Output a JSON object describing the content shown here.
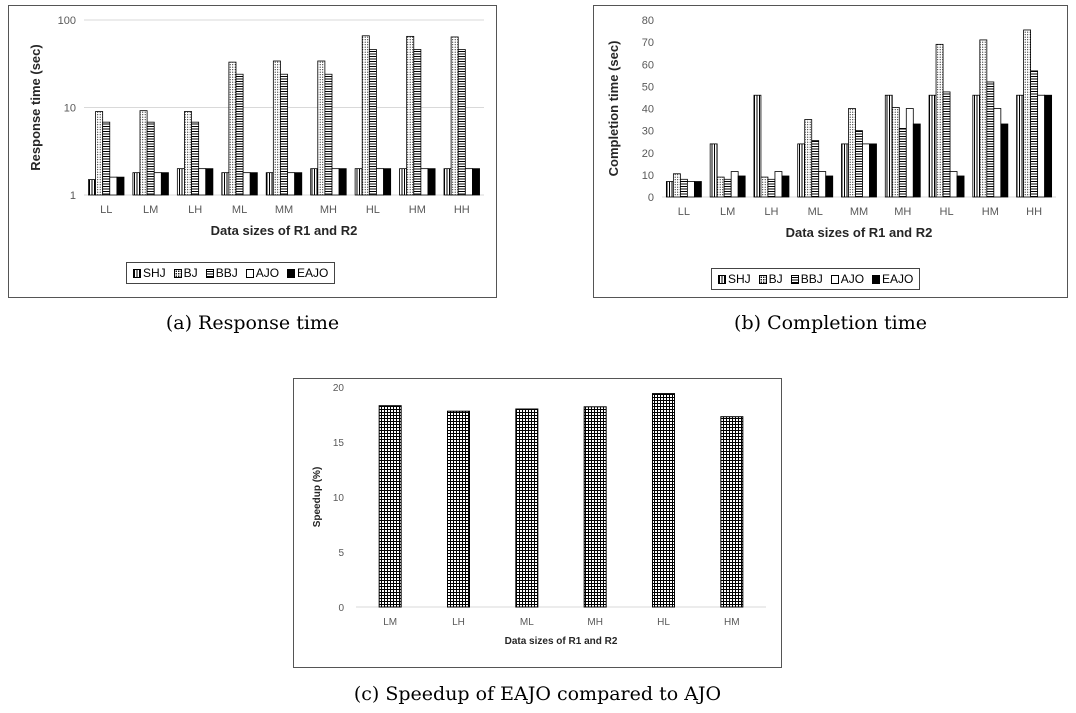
{
  "captions": {
    "a": "(a) Response time",
    "b": "(b) Completion time",
    "c": "(c) Speedup of EAJO compared to AJO"
  },
  "legend": [
    "SHJ",
    "BJ",
    "BBJ",
    "AJO",
    "EAJO"
  ],
  "chart_data": [
    {
      "id": "a",
      "type": "bar",
      "xlabel": "Data sizes of R1 and R2",
      "ylabel": "Response time (sec)",
      "yscale": "log",
      "ylim": [
        1,
        100
      ],
      "yticks": [
        1,
        10,
        100
      ],
      "grid": true,
      "legend_position": "bottom",
      "categories": [
        "LL",
        "LM",
        "LH",
        "ML",
        "MM",
        "MH",
        "HL",
        "HM",
        "HH"
      ],
      "series": [
        {
          "name": "SHJ",
          "values": [
            1.5,
            1.8,
            2.0,
            1.8,
            1.8,
            2.0,
            2.0,
            2.0,
            2.0
          ]
        },
        {
          "name": "BJ",
          "values": [
            9.0,
            9.2,
            9.0,
            33,
            34,
            34,
            66,
            65,
            64
          ]
        },
        {
          "name": "BBJ",
          "values": [
            6.8,
            6.8,
            6.8,
            24,
            24,
            24,
            46,
            46,
            46
          ]
        },
        {
          "name": "AJO",
          "values": [
            1.6,
            1.8,
            2.0,
            1.8,
            1.8,
            2.0,
            2.0,
            2.0,
            2.0
          ]
        },
        {
          "name": "EAJO",
          "values": [
            1.6,
            1.8,
            2.0,
            1.8,
            1.8,
            2.0,
            2.0,
            2.0,
            2.0
          ]
        }
      ]
    },
    {
      "id": "b",
      "type": "bar",
      "xlabel": "Data sizes of R1 and R2",
      "ylabel": "Completion time (sec)",
      "ylim": [
        0,
        80
      ],
      "yticks": [
        0,
        10,
        20,
        30,
        40,
        50,
        60,
        70,
        80
      ],
      "grid": false,
      "legend_position": "bottom",
      "categories": [
        "LL",
        "LM",
        "LH",
        "ML",
        "MM",
        "MH",
        "HL",
        "HM",
        "HH"
      ],
      "series": [
        {
          "name": "SHJ",
          "values": [
            7,
            24,
            46,
            24,
            24,
            46,
            46,
            46,
            46
          ]
        },
        {
          "name": "BJ",
          "values": [
            10.5,
            9,
            9,
            35,
            40,
            40.5,
            69,
            71,
            75.5
          ]
        },
        {
          "name": "BBJ",
          "values": [
            8,
            8,
            8,
            25.5,
            30,
            31,
            47.5,
            52,
            57
          ]
        },
        {
          "name": "AJO",
          "values": [
            7,
            11.5,
            11.5,
            11.5,
            24,
            40,
            11.5,
            40,
            46
          ]
        },
        {
          "name": "EAJO",
          "values": [
            7,
            9.5,
            9.5,
            9.5,
            24,
            33,
            9.5,
            33,
            46
          ]
        }
      ]
    },
    {
      "id": "c",
      "type": "bar",
      "xlabel": "Data sizes of R1 and R2",
      "ylabel": "Speedup (%)",
      "ylim": [
        0,
        20
      ],
      "yticks": [
        0,
        5,
        10,
        15,
        20
      ],
      "grid": false,
      "categories": [
        "LM",
        "LH",
        "ML",
        "MH",
        "HL",
        "HM"
      ],
      "values": [
        18.3,
        17.8,
        18.0,
        18.2,
        19.4,
        17.3
      ]
    }
  ]
}
